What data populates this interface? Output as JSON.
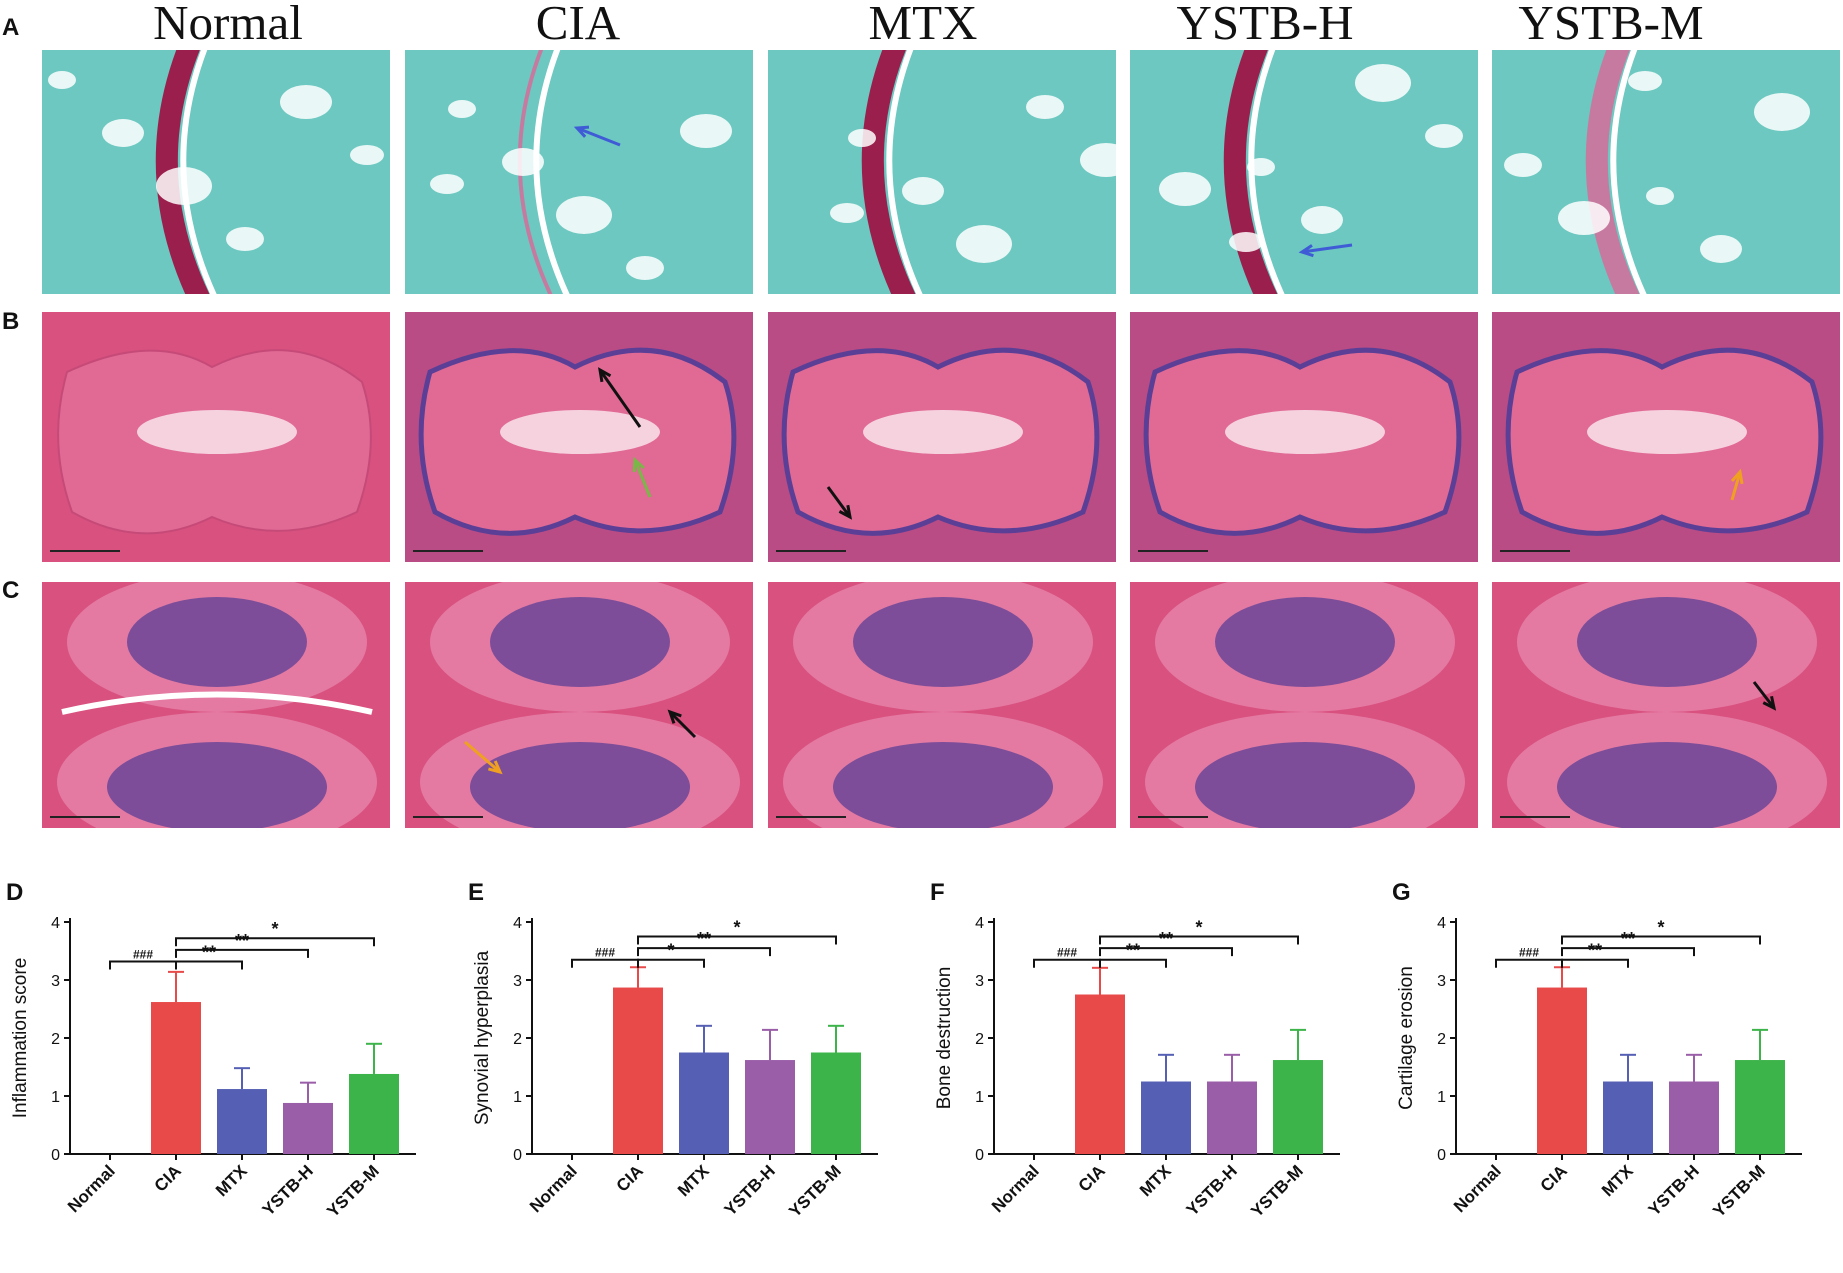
{
  "columns": [
    "Normal",
    "CIA",
    "MTX",
    "YSTB-H",
    "YSTB-M"
  ],
  "row_letters": [
    "A",
    "B",
    "C"
  ],
  "colors": {
    "safranin_bg": "#6cc8c0",
    "safranin_stain": "#9b1f4c",
    "he_bg": "#d9517f",
    "he_purple": "#5b3f96",
    "arrow_blue": "#3f5bd6",
    "arrow_black": "#111111",
    "arrow_green": "#7ab648",
    "arrow_orange": "#f0a020"
  },
  "chart_data": [
    {
      "panel": "D",
      "type": "bar",
      "categories": [
        "Normal",
        "CIA",
        "MTX",
        "YSTB-H",
        "YSTB-M"
      ],
      "values": [
        0,
        2.62,
        1.12,
        0.88,
        1.38
      ],
      "errors": [
        0,
        0.52,
        0.36,
        0.35,
        0.52
      ],
      "colors": [
        "#e84a4a",
        "#e84a4a",
        "#5560b4",
        "#9a5ea8",
        "#3cb44a"
      ],
      "xlabel": "",
      "ylabel": "Inflammation score",
      "ylim": [
        0,
        4
      ],
      "yticks": [
        0,
        1,
        2,
        3,
        4
      ],
      "significance": [
        {
          "from": 0,
          "to": 1,
          "label": "###",
          "y": 3.32
        },
        {
          "from": 1,
          "to": 2,
          "label": "**",
          "y": 3.32
        },
        {
          "from": 1,
          "to": 3,
          "label": "**",
          "y": 3.52
        },
        {
          "from": 1,
          "to": 4,
          "label": "*",
          "y": 3.72
        }
      ]
    },
    {
      "panel": "E",
      "type": "bar",
      "categories": [
        "Normal",
        "CIA",
        "MTX",
        "YSTB-H",
        "YSTB-M"
      ],
      "values": [
        0,
        2.87,
        1.75,
        1.62,
        1.75
      ],
      "errors": [
        0,
        0.35,
        0.46,
        0.52,
        0.46
      ],
      "colors": [
        "#e84a4a",
        "#e84a4a",
        "#5560b4",
        "#9a5ea8",
        "#3cb44a"
      ],
      "xlabel": "",
      "ylabel": "Synovial hyperplasia",
      "ylim": [
        0,
        4
      ],
      "yticks": [
        0,
        1,
        2,
        3,
        4
      ],
      "significance": [
        {
          "from": 0,
          "to": 1,
          "label": "###",
          "y": 3.35
        },
        {
          "from": 1,
          "to": 2,
          "label": "*",
          "y": 3.35
        },
        {
          "from": 1,
          "to": 3,
          "label": "**",
          "y": 3.55
        },
        {
          "from": 1,
          "to": 4,
          "label": "*",
          "y": 3.75
        }
      ]
    },
    {
      "panel": "F",
      "type": "bar",
      "categories": [
        "Normal",
        "CIA",
        "MTX",
        "YSTB-H",
        "YSTB-M"
      ],
      "values": [
        0,
        2.75,
        1.25,
        1.25,
        1.62
      ],
      "errors": [
        0,
        0.46,
        0.46,
        0.46,
        0.52
      ],
      "colors": [
        "#e84a4a",
        "#e84a4a",
        "#5560b4",
        "#9a5ea8",
        "#3cb44a"
      ],
      "xlabel": "",
      "ylabel": "Bone destruction",
      "ylim": [
        0,
        4
      ],
      "yticks": [
        0,
        1,
        2,
        3,
        4
      ],
      "significance": [
        {
          "from": 0,
          "to": 1,
          "label": "###",
          "y": 3.35
        },
        {
          "from": 1,
          "to": 2,
          "label": "**",
          "y": 3.35
        },
        {
          "from": 1,
          "to": 3,
          "label": "**",
          "y": 3.55
        },
        {
          "from": 1,
          "to": 4,
          "label": "*",
          "y": 3.75
        }
      ]
    },
    {
      "panel": "G",
      "type": "bar",
      "categories": [
        "Normal",
        "CIA",
        "MTX",
        "YSTB-H",
        "YSTB-M"
      ],
      "values": [
        0,
        2.87,
        1.25,
        1.25,
        1.62
      ],
      "errors": [
        0,
        0.35,
        0.46,
        0.46,
        0.52
      ],
      "colors": [
        "#e84a4a",
        "#e84a4a",
        "#5560b4",
        "#9a5ea8",
        "#3cb44a"
      ],
      "xlabel": "",
      "ylabel": "Cartilage erosion",
      "ylim": [
        0,
        4
      ],
      "yticks": [
        0,
        1,
        2,
        3,
        4
      ],
      "significance": [
        {
          "from": 0,
          "to": 1,
          "label": "###",
          "y": 3.35
        },
        {
          "from": 1,
          "to": 2,
          "label": "**",
          "y": 3.35
        },
        {
          "from": 1,
          "to": 3,
          "label": "**",
          "y": 3.55
        },
        {
          "from": 1,
          "to": 4,
          "label": "*",
          "y": 3.75
        }
      ]
    }
  ]
}
